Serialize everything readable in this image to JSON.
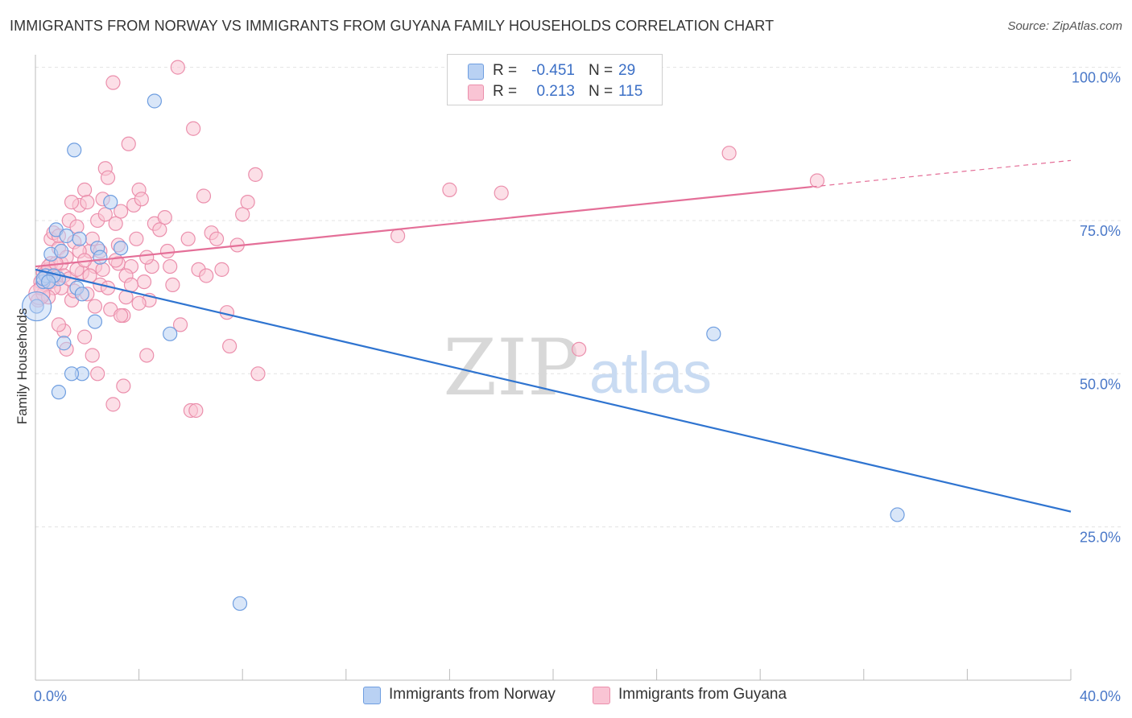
{
  "title": "IMMIGRANTS FROM NORWAY VS IMMIGRANTS FROM GUYANA FAMILY HOUSEHOLDS CORRELATION CHART",
  "source": "Source: ZipAtlas.com",
  "watermark": {
    "zip": "ZIP",
    "atlas": "atlas"
  },
  "legend": {
    "r_label": "R =",
    "n_label": "N =",
    "norway": {
      "r": "-0.451",
      "n": "29"
    },
    "guyana": {
      "r": "0.213",
      "n": "115"
    }
  },
  "colors": {
    "norway_fill": "#b9d1f3",
    "norway_stroke": "#6f9ee0",
    "norway_line": "#2f74d0",
    "guyana_fill": "#f9c4d4",
    "guyana_stroke": "#eb8fac",
    "guyana_line": "#e46f98",
    "grid": "#e3e3e3",
    "tick_text": "#4a78c8"
  },
  "chart_data": {
    "type": "scatter",
    "title": "IMMIGRANTS FROM NORWAY VS IMMIGRANTS FROM GUYANA FAMILY HOUSEHOLDS CORRELATION CHART",
    "xlabel": "",
    "ylabel": "Family Households",
    "xlim": [
      0,
      40
    ],
    "ylim": [
      0,
      101
    ],
    "x_tick_labels": [
      "0.0%",
      "40.0%"
    ],
    "y_ticks": [
      25,
      50,
      75,
      100
    ],
    "y_tick_labels": [
      "25.0%",
      "50.0%",
      "75.0%",
      "100.0%"
    ],
    "grid": true,
    "series": [
      {
        "name": "Immigrants from Norway",
        "points": [
          [
            0.05,
            61.0
          ],
          [
            0.3,
            65.0
          ],
          [
            0.4,
            66.0
          ],
          [
            0.6,
            69.5
          ],
          [
            0.8,
            73.5
          ],
          [
            0.9,
            65.5
          ],
          [
            1.0,
            70.0
          ],
          [
            1.2,
            72.5
          ],
          [
            1.5,
            86.5
          ],
          [
            1.6,
            64.0
          ],
          [
            1.7,
            72.0
          ],
          [
            1.8,
            63.0
          ],
          [
            2.3,
            58.5
          ],
          [
            2.4,
            70.5
          ],
          [
            2.5,
            69.0
          ],
          [
            2.9,
            78.0
          ],
          [
            3.3,
            70.5
          ],
          [
            4.6,
            94.5
          ],
          [
            5.2,
            56.5
          ],
          [
            7.9,
            12.5
          ],
          [
            0.9,
            47.0
          ],
          [
            1.8,
            50.0
          ],
          [
            1.4,
            50.0
          ],
          [
            1.1,
            55.0
          ],
          [
            0.3,
            65.5
          ],
          [
            0.7,
            66.0
          ],
          [
            26.2,
            56.5
          ],
          [
            33.3,
            27.0
          ],
          [
            0.5,
            65.0
          ]
        ],
        "trend": {
          "x": [
            0,
            40
          ],
          "y": [
            67.0,
            27.5
          ]
        }
      },
      {
        "name": "Immigrants from Guyana",
        "points": [
          [
            0.1,
            62.0
          ],
          [
            0.2,
            65.0
          ],
          [
            0.3,
            66.5
          ],
          [
            0.4,
            64.5
          ],
          [
            0.5,
            67.0
          ],
          [
            0.6,
            68.0
          ],
          [
            0.6,
            72.0
          ],
          [
            0.7,
            73.0
          ],
          [
            0.8,
            66.0
          ],
          [
            0.9,
            70.5
          ],
          [
            1.0,
            64.0
          ],
          [
            1.0,
            68.0
          ],
          [
            1.1,
            57.0
          ],
          [
            1.2,
            69.0
          ],
          [
            1.3,
            75.0
          ],
          [
            1.4,
            62.0
          ],
          [
            1.5,
            71.5
          ],
          [
            1.6,
            74.0
          ],
          [
            1.7,
            77.5
          ],
          [
            1.8,
            66.5
          ],
          [
            1.9,
            80.0
          ],
          [
            2.0,
            78.0
          ],
          [
            2.1,
            70.0
          ],
          [
            2.2,
            72.0
          ],
          [
            2.3,
            67.5
          ],
          [
            2.4,
            75.0
          ],
          [
            2.5,
            64.5
          ],
          [
            2.6,
            78.5
          ],
          [
            2.7,
            83.5
          ],
          [
            2.8,
            82.0
          ],
          [
            2.9,
            60.5
          ],
          [
            3.0,
            97.5
          ],
          [
            3.1,
            74.5
          ],
          [
            3.2,
            68.0
          ],
          [
            3.3,
            76.5
          ],
          [
            3.4,
            59.5
          ],
          [
            3.5,
            62.5
          ],
          [
            3.6,
            87.5
          ],
          [
            3.7,
            67.5
          ],
          [
            3.8,
            77.5
          ],
          [
            3.9,
            72.0
          ],
          [
            4.0,
            80.0
          ],
          [
            4.1,
            78.5
          ],
          [
            4.2,
            65.0
          ],
          [
            4.3,
            53.0
          ],
          [
            4.4,
            62.0
          ],
          [
            4.6,
            74.5
          ],
          [
            5.0,
            75.5
          ],
          [
            5.2,
            67.5
          ],
          [
            5.5,
            100.0
          ],
          [
            5.9,
            72.0
          ],
          [
            6.1,
            90.0
          ],
          [
            6.3,
            67.0
          ],
          [
            6.5,
            79.0
          ],
          [
            6.8,
            73.0
          ],
          [
            7.0,
            72.0
          ],
          [
            7.2,
            67.0
          ],
          [
            7.5,
            54.5
          ],
          [
            7.8,
            71.0
          ],
          [
            8.0,
            76.0
          ],
          [
            8.2,
            78.0
          ],
          [
            8.5,
            82.5
          ],
          [
            8.6,
            50.0
          ],
          [
            1.9,
            56.0
          ],
          [
            2.2,
            53.0
          ],
          [
            2.4,
            50.0
          ],
          [
            3.0,
            45.0
          ],
          [
            6.0,
            44.0
          ],
          [
            6.2,
            44.0
          ],
          [
            3.4,
            48.0
          ],
          [
            0.9,
            58.0
          ],
          [
            1.2,
            54.0
          ],
          [
            14.0,
            72.5
          ],
          [
            16.0,
            80.0
          ],
          [
            18.0,
            79.5
          ],
          [
            21.0,
            54.0
          ],
          [
            26.8,
            86.0
          ],
          [
            30.2,
            81.5
          ],
          [
            0.3,
            63.0
          ],
          [
            0.4,
            66.5
          ],
          [
            0.5,
            67.5
          ],
          [
            0.6,
            65.0
          ],
          [
            0.7,
            64.0
          ],
          [
            0.8,
            68.0
          ],
          [
            1.1,
            66.0
          ],
          [
            1.3,
            65.5
          ],
          [
            1.5,
            63.5
          ],
          [
            1.6,
            67.0
          ],
          [
            1.7,
            70.0
          ],
          [
            1.9,
            68.5
          ],
          [
            2.0,
            63.0
          ],
          [
            2.1,
            66.0
          ],
          [
            2.3,
            61.0
          ],
          [
            2.5,
            70.0
          ],
          [
            2.6,
            67.0
          ],
          [
            2.8,
            64.0
          ],
          [
            3.1,
            68.5
          ],
          [
            3.3,
            59.5
          ],
          [
            3.5,
            66.0
          ],
          [
            3.7,
            64.5
          ],
          [
            4.0,
            61.5
          ],
          [
            4.5,
            67.5
          ],
          [
            4.8,
            73.5
          ],
          [
            5.3,
            64.5
          ],
          [
            5.6,
            58.0
          ],
          [
            6.6,
            66.0
          ],
          [
            7.4,
            60.0
          ],
          [
            0.2,
            64.0
          ],
          [
            0.9,
            72.5
          ],
          [
            1.4,
            78.0
          ],
          [
            2.7,
            76.0
          ],
          [
            3.2,
            71.0
          ],
          [
            4.3,
            69.0
          ],
          [
            5.1,
            70.0
          ],
          [
            0.5,
            62.5
          ]
        ],
        "trend": {
          "x": [
            0,
            30
          ],
          "y": [
            67.5,
            80.5
          ]
        },
        "trend_extension": {
          "x": [
            30,
            40
          ],
          "y": [
            80.5,
            84.8
          ]
        }
      }
    ]
  },
  "bottom_legend": {
    "norway_label": "Immigrants from Norway",
    "guyana_label": "Immigrants from Guyana"
  }
}
